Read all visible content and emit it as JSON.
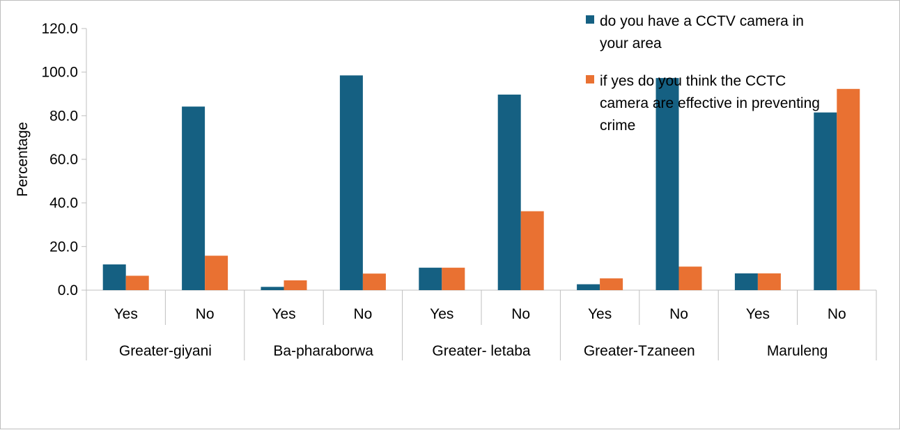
{
  "chart_data": {
    "type": "bar",
    "title": "",
    "xlabel": "",
    "ylabel": "Percentage",
    "ylim": [
      0,
      120
    ],
    "yticks": [
      "0.0",
      "20.0",
      "40.0",
      "60.0",
      "80.0",
      "100.0",
      "120.0"
    ],
    "groups": [
      "Greater-giyani",
      "Ba-pharaborwa",
      "Greater- letaba",
      "Greater-Tzaneen",
      "Maruleng"
    ],
    "categories": [
      "Yes",
      "No",
      "Yes",
      "No",
      "Yes",
      "No",
      "Yes",
      "No",
      "Yes",
      "No"
    ],
    "series": [
      {
        "name": "do you have a CCTV camera in your area",
        "color": "#156082",
        "values": [
          11.8,
          84.2,
          1.5,
          98.5,
          10.3,
          89.7,
          2.7,
          97.3,
          7.7,
          81.5
        ]
      },
      {
        "name": "if yes do you think the CCTC camera are effective in preventing crime",
        "color": "#e97132",
        "values": [
          6.6,
          15.8,
          4.5,
          7.6,
          10.3,
          36.2,
          5.4,
          10.8,
          7.7,
          92.3
        ]
      }
    ],
    "legend_position": "top-right",
    "grid": false
  }
}
